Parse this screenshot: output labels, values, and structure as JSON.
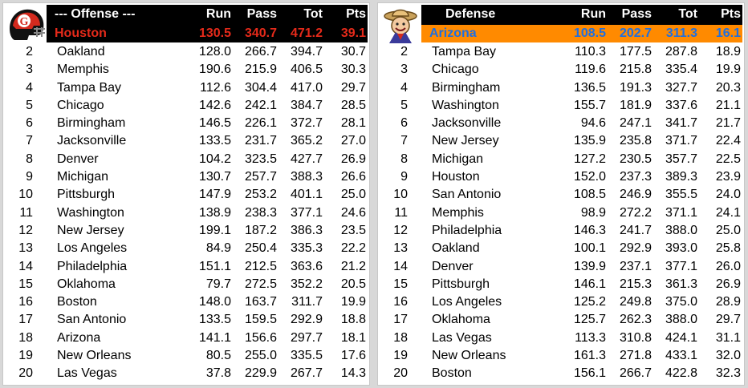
{
  "offense": {
    "header": {
      "title": "--- Offense ---",
      "run": "Run",
      "pass": "Pass",
      "tot": "Tot",
      "pts": "Pts"
    },
    "top": {
      "team": "Houston",
      "run": "130.5",
      "pass": "340.7",
      "tot": "471.2",
      "pts": "39.1"
    },
    "logo": "football-helmet-logo",
    "rows": [
      {
        "rank": "2",
        "team": "Oakland",
        "run": "128.0",
        "pass": "266.7",
        "tot": "394.7",
        "pts": "30.7"
      },
      {
        "rank": "3",
        "team": "Memphis",
        "run": "190.6",
        "pass": "215.9",
        "tot": "406.5",
        "pts": "30.3"
      },
      {
        "rank": "4",
        "team": "Tampa Bay",
        "run": "112.6",
        "pass": "304.4",
        "tot": "417.0",
        "pts": "29.7"
      },
      {
        "rank": "5",
        "team": "Chicago",
        "run": "142.6",
        "pass": "242.1",
        "tot": "384.7",
        "pts": "28.5"
      },
      {
        "rank": "6",
        "team": "Birmingham",
        "run": "146.5",
        "pass": "226.1",
        "tot": "372.7",
        "pts": "28.1"
      },
      {
        "rank": "7",
        "team": "Jacksonville",
        "run": "133.5",
        "pass": "231.7",
        "tot": "365.2",
        "pts": "27.0"
      },
      {
        "rank": "8",
        "team": "Denver",
        "run": "104.2",
        "pass": "323.5",
        "tot": "427.7",
        "pts": "26.9"
      },
      {
        "rank": "9",
        "team": "Michigan",
        "run": "130.7",
        "pass": "257.7",
        "tot": "388.3",
        "pts": "26.6"
      },
      {
        "rank": "10",
        "team": "Pittsburgh",
        "run": "147.9",
        "pass": "253.2",
        "tot": "401.1",
        "pts": "25.0"
      },
      {
        "rank": "11",
        "team": "Washington",
        "run": "138.9",
        "pass": "238.3",
        "tot": "377.1",
        "pts": "24.6"
      },
      {
        "rank": "12",
        "team": "New Jersey",
        "run": "199.1",
        "pass": "187.2",
        "tot": "386.3",
        "pts": "23.5"
      },
      {
        "rank": "13",
        "team": "Los Angeles",
        "run": "84.9",
        "pass": "250.4",
        "tot": "335.3",
        "pts": "22.2"
      },
      {
        "rank": "14",
        "team": "Philadelphia",
        "run": "151.1",
        "pass": "212.5",
        "tot": "363.6",
        "pts": "21.2"
      },
      {
        "rank": "15",
        "team": "Oklahoma",
        "run": "79.7",
        "pass": "272.5",
        "tot": "352.2",
        "pts": "20.5"
      },
      {
        "rank": "16",
        "team": "Boston",
        "run": "148.0",
        "pass": "163.7",
        "tot": "311.7",
        "pts": "19.9"
      },
      {
        "rank": "17",
        "team": "San Antonio",
        "run": "133.5",
        "pass": "159.5",
        "tot": "292.9",
        "pts": "18.8"
      },
      {
        "rank": "18",
        "team": "Arizona",
        "run": "141.1",
        "pass": "156.6",
        "tot": "297.7",
        "pts": "18.1"
      },
      {
        "rank": "19",
        "team": "New Orleans",
        "run": "80.5",
        "pass": "255.0",
        "tot": "335.5",
        "pts": "17.6"
      },
      {
        "rank": "20",
        "team": "Las Vegas",
        "run": "37.8",
        "pass": "229.9",
        "tot": "267.7",
        "pts": "14.3"
      }
    ]
  },
  "defense": {
    "header": {
      "title": "Defense",
      "run": "Run",
      "pass": "Pass",
      "tot": "Tot",
      "pts": "Pts"
    },
    "top": {
      "team": "Arizona",
      "run": "108.5",
      "pass": "202.7",
      "tot": "311.3",
      "pts": "16.1"
    },
    "logo": "wrangler-mascot-logo",
    "rows": [
      {
        "rank": "2",
        "team": "Tampa Bay",
        "run": "110.3",
        "pass": "177.5",
        "tot": "287.8",
        "pts": "18.9"
      },
      {
        "rank": "3",
        "team": "Chicago",
        "run": "119.6",
        "pass": "215.8",
        "tot": "335.4",
        "pts": "19.9"
      },
      {
        "rank": "4",
        "team": "Birmingham",
        "run": "136.5",
        "pass": "191.3",
        "tot": "327.7",
        "pts": "20.3"
      },
      {
        "rank": "5",
        "team": "Washington",
        "run": "155.7",
        "pass": "181.9",
        "tot": "337.6",
        "pts": "21.1"
      },
      {
        "rank": "6",
        "team": "Jacksonville",
        "run": "94.6",
        "pass": "247.1",
        "tot": "341.7",
        "pts": "21.7"
      },
      {
        "rank": "7",
        "team": "New Jersey",
        "run": "135.9",
        "pass": "235.8",
        "tot": "371.7",
        "pts": "22.4"
      },
      {
        "rank": "8",
        "team": "Michigan",
        "run": "127.2",
        "pass": "230.5",
        "tot": "357.7",
        "pts": "22.5"
      },
      {
        "rank": "9",
        "team": "Houston",
        "run": "152.0",
        "pass": "237.3",
        "tot": "389.3",
        "pts": "23.9"
      },
      {
        "rank": "10",
        "team": "San Antonio",
        "run": "108.5",
        "pass": "246.9",
        "tot": "355.5",
        "pts": "24.0"
      },
      {
        "rank": "11",
        "team": "Memphis",
        "run": "98.9",
        "pass": "272.2",
        "tot": "371.1",
        "pts": "24.1"
      },
      {
        "rank": "12",
        "team": "Philadelphia",
        "run": "146.3",
        "pass": "241.7",
        "tot": "388.0",
        "pts": "25.0"
      },
      {
        "rank": "13",
        "team": "Oakland",
        "run": "100.1",
        "pass": "292.9",
        "tot": "393.0",
        "pts": "25.8"
      },
      {
        "rank": "14",
        "team": "Denver",
        "run": "139.9",
        "pass": "237.1",
        "tot": "377.1",
        "pts": "26.0"
      },
      {
        "rank": "15",
        "team": "Pittsburgh",
        "run": "146.1",
        "pass": "215.3",
        "tot": "361.3",
        "pts": "26.9"
      },
      {
        "rank": "16",
        "team": "Los Angeles",
        "run": "125.2",
        "pass": "249.8",
        "tot": "375.0",
        "pts": "28.9"
      },
      {
        "rank": "17",
        "team": "Oklahoma",
        "run": "125.7",
        "pass": "262.3",
        "tot": "388.0",
        "pts": "29.7"
      },
      {
        "rank": "18",
        "team": "Las Vegas",
        "run": "113.3",
        "pass": "310.8",
        "tot": "424.1",
        "pts": "31.1"
      },
      {
        "rank": "19",
        "team": "New Orleans",
        "run": "161.3",
        "pass": "271.8",
        "tot": "433.1",
        "pts": "32.0"
      },
      {
        "rank": "20",
        "team": "Boston",
        "run": "156.1",
        "pass": "266.7",
        "tot": "422.8",
        "pts": "32.3"
      }
    ]
  },
  "colors": {
    "offense_top_bg": "#000000",
    "offense_top_text": "#e52a1a",
    "defense_top_bg": "#ff8a00",
    "defense_top_text": "#1e6fe0",
    "header_bg": "#000000",
    "header_text": "#ffffff"
  }
}
